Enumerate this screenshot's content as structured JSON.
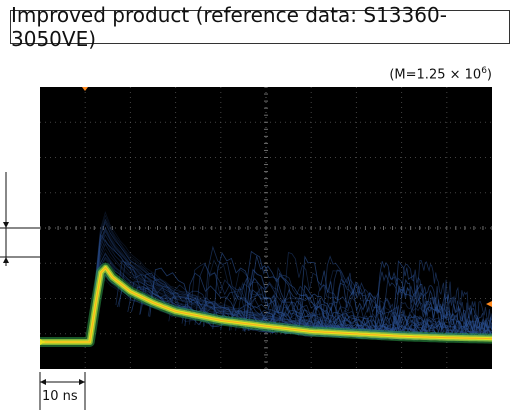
{
  "title": "Improved product (reference data: S13360-3050VE)",
  "gain_note": {
    "prefix": "(M=1.25 × 10",
    "exponent": "6",
    "suffix": ")"
  },
  "time_scale_label": "10 ns",
  "colors": {
    "screen_background": "#000000",
    "grid": "#6e6e6e",
    "main_trace": "#e8e020",
    "trace_glow": "#2fa04a",
    "afterpulse_traces": "#2a4f8f"
  },
  "chart_data": {
    "type": "line",
    "title": "Improved product (reference data: S13360-3050VE)",
    "xlabel": "",
    "ylabel": "",
    "x_divisions": 10,
    "y_divisions": 8,
    "x_per_division": "10 ns",
    "grid": true,
    "series": [
      {
        "values": [
          [
            0,
            0.0
          ],
          [
            11,
            0.0
          ],
          [
            11.5,
            0.3
          ],
          [
            12.5,
            0.9
          ],
          [
            13.5,
            1.45
          ],
          [
            14.5,
            1.55
          ],
          [
            16,
            1.35
          ],
          [
            20,
            1.05
          ],
          [
            25,
            0.82
          ],
          [
            30,
            0.64
          ],
          [
            40,
            0.45
          ],
          [
            50,
            0.33
          ],
          [
            60,
            0.22
          ],
          [
            70,
            0.17
          ],
          [
            80,
            0.12
          ],
          [
            90,
            0.09
          ],
          [
            100,
            0.07
          ]
        ]
      }
    ]
  }
}
